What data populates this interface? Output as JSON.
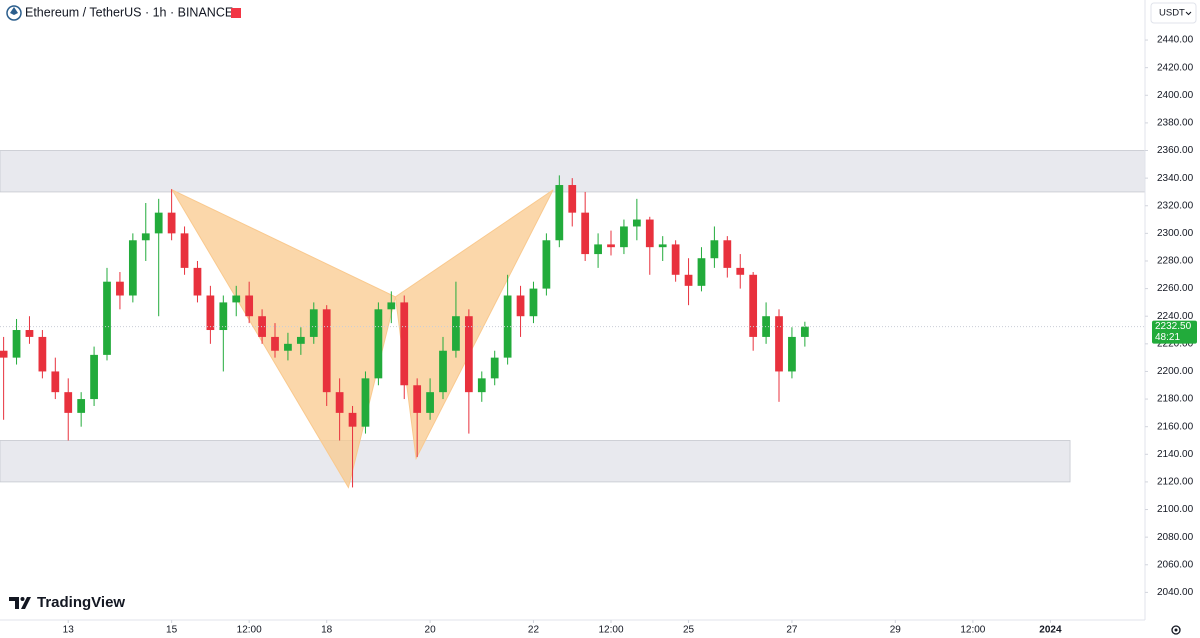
{
  "chart_data": {
    "type": "candlestick",
    "title": "Ethereum / TetherUS · 1h · BINANCE",
    "currency": "USDT",
    "brand": "TradingView",
    "up_color": "#22ab3b",
    "down_color": "#e8313d",
    "xlim": [
      11.68,
      33.83
    ],
    "ylim": [
      2020,
      2469
    ],
    "xticks": [
      13,
      15,
      {
        "value": 16.5,
        "label": "12:00"
      },
      18,
      20,
      22,
      {
        "value": 23.5,
        "label": "12:00"
      },
      25,
      27,
      29,
      {
        "value": 30.5,
        "label": "12:00"
      },
      {
        "value": 32,
        "label": "2024"
      }
    ],
    "yticks": [
      {
        "value": 2040,
        "label": "2040.00"
      },
      {
        "value": 2060,
        "label": "2060.00"
      },
      {
        "value": 2080,
        "label": "2080.00"
      },
      {
        "value": 2100,
        "label": "2100.00"
      },
      {
        "value": 2120,
        "label": "2120.00"
      },
      {
        "value": 2140,
        "label": "2140.00"
      },
      {
        "value": 2160,
        "label": "2160.00"
      },
      {
        "value": 2180,
        "label": "2180.00"
      },
      {
        "value": 2200,
        "label": "2200.00"
      },
      {
        "value": 2220,
        "label": "2220.00"
      },
      {
        "value": 2240,
        "label": "2240.00"
      },
      {
        "value": 2260,
        "label": "2260.00"
      },
      {
        "value": 2280,
        "label": "2280.00"
      },
      {
        "value": 2300,
        "label": "2300.00"
      },
      {
        "value": 2320,
        "label": "2320.00"
      },
      {
        "value": 2340,
        "label": "2340.00"
      },
      {
        "value": 2360,
        "label": "2360.00"
      },
      {
        "value": 2380,
        "label": "2380.00"
      },
      {
        "value": 2400,
        "label": "2400.00"
      },
      {
        "value": 2420,
        "label": "2420.00"
      },
      {
        "value": 2440,
        "label": "2440.00"
      }
    ],
    "zones": [
      {
        "from": 11.68,
        "to": 33.83,
        "bottom": 2330,
        "top": 2360,
        "color": "#e8e9ee"
      },
      {
        "from": 11.68,
        "to": 32.38,
        "bottom": 2120,
        "top": 2150,
        "color": "#e8e9ee"
      }
    ],
    "pattern": {
      "color": "#f9c98e",
      "points": [
        {
          "x": 15.01,
          "y": 2331.5
        },
        {
          "x": 18.42,
          "y": 2116
        },
        {
          "x": 19.33,
          "y": 2254
        },
        {
          "x": 19.73,
          "y": 2137
        },
        {
          "x": 22.38,
          "y": 2331.5
        }
      ]
    },
    "last_price": {
      "value": 2232.5,
      "label": "2232.50",
      "countdown": "48:21",
      "color": "#22ab3b"
    },
    "x": [
      11.75,
      12,
      12.25,
      12.5,
      12.75,
      13,
      13.25,
      13.5,
      13.75,
      14,
      14.25,
      14.5,
      14.75,
      15,
      15.25,
      15.5,
      15.75,
      16,
      16.25,
      16.5,
      16.75,
      17,
      17.25,
      17.5,
      17.75,
      18,
      18.25,
      18.5,
      18.75,
      19,
      19.25,
      19.5,
      19.75,
      20,
      20.25,
      20.5,
      20.75,
      21,
      21.25,
      21.5,
      21.75,
      22,
      22.25,
      22.5,
      22.75,
      23,
      23.25,
      23.5,
      23.75,
      24,
      24.25,
      24.5,
      24.75,
      25,
      25.25,
      25.5,
      25.75,
      26,
      26.25,
      26.5,
      26.75,
      27,
      27.25
    ],
    "open": [
      2215,
      2210,
      2230,
      2225,
      2200,
      2185,
      2170,
      2180,
      2212,
      2265,
      2255,
      2295,
      2300,
      2315,
      2300,
      2275,
      2255,
      2230,
      2250,
      2255,
      2240,
      2225,
      2215,
      2220,
      2225,
      2245,
      2185,
      2170,
      2160,
      2195,
      2245,
      2250,
      2190,
      2170,
      2185,
      2215,
      2240,
      2185,
      2195,
      2210,
      2255,
      2240,
      2260,
      2295,
      2335,
      2315,
      2285,
      2292,
      2290,
      2305,
      2310,
      2290,
      2292,
      2270,
      2262,
      2282,
      2295,
      2275,
      2270,
      2225,
      2240,
      2200,
      2225
    ],
    "high": [
      2225,
      2238,
      2240,
      2230,
      2210,
      2195,
      2185,
      2218,
      2275,
      2272,
      2300,
      2322,
      2325,
      2332,
      2305,
      2280,
      2262,
      2255,
      2262,
      2265,
      2245,
      2235,
      2228,
      2232,
      2250,
      2248,
      2195,
      2175,
      2200,
      2250,
      2258,
      2255,
      2195,
      2195,
      2225,
      2265,
      2245,
      2200,
      2215,
      2270,
      2262,
      2265,
      2300,
      2342,
      2340,
      2330,
      2300,
      2302,
      2310,
      2325,
      2312,
      2298,
      2295,
      2282,
      2290,
      2305,
      2298,
      2285,
      2272,
      2250,
      2245,
      2232,
      2236
    ],
    "low": [
      2165,
      2205,
      2220,
      2195,
      2180,
      2150,
      2160,
      2175,
      2208,
      2245,
      2250,
      2280,
      2240,
      2295,
      2270,
      2250,
      2220,
      2200,
      2240,
      2235,
      2220,
      2210,
      2208,
      2212,
      2220,
      2175,
      2150,
      2116,
      2155,
      2190,
      2235,
      2180,
      2138,
      2165,
      2180,
      2210,
      2155,
      2178,
      2190,
      2205,
      2225,
      2235,
      2255,
      2290,
      2305,
      2280,
      2275,
      2284,
      2285,
      2295,
      2270,
      2280,
      2265,
      2248,
      2258,
      2275,
      2268,
      2260,
      2215,
      2220,
      2178,
      2195,
      2218
    ],
    "close": [
      2210,
      2230,
      2225,
      2200,
      2185,
      2170,
      2180,
      2212,
      2265,
      2255,
      2295,
      2300,
      2315,
      2300,
      2275,
      2255,
      2230,
      2250,
      2255,
      2240,
      2225,
      2215,
      2220,
      2225,
      2245,
      2185,
      2170,
      2160,
      2195,
      2245,
      2250,
      2190,
      2170,
      2185,
      2215,
      2240,
      2185,
      2195,
      2210,
      2255,
      2240,
      2260,
      2295,
      2335,
      2315,
      2285,
      2292,
      2290,
      2305,
      2310,
      2290,
      2292,
      2270,
      2262,
      2282,
      2295,
      2275,
      2270,
      2225,
      2240,
      2200,
      2225,
      2232.5
    ]
  }
}
